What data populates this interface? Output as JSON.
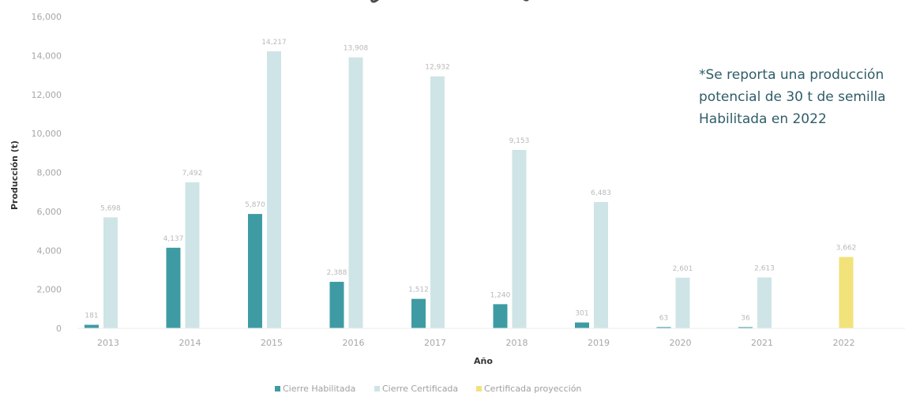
{
  "chart_data": {
    "type": "bar",
    "categories": [
      "2013",
      "2014",
      "2015",
      "2016",
      "2017",
      "2018",
      "2019",
      "2020",
      "2021",
      "2022"
    ],
    "series": [
      {
        "name": "Cierre Habilitada",
        "color": "#3f9ba3",
        "values": [
          181,
          4137,
          5870,
          2388,
          1512,
          1240,
          301,
          63,
          36,
          null
        ],
        "labels": [
          "181",
          "4,137",
          "5,870",
          "2,388",
          "1,512",
          "1,240",
          "301",
          "63",
          "36",
          ""
        ]
      },
      {
        "name": "Cierre Certificada",
        "color": "#cfe4e6",
        "values": [
          5698,
          7492,
          14217,
          13908,
          12932,
          9153,
          6483,
          2601,
          2613,
          null
        ],
        "labels": [
          "5,698",
          "7,492",
          "14,217",
          "13,908",
          "12,932",
          "9,153",
          "6,483",
          "2,601",
          "2,613",
          ""
        ]
      },
      {
        "name": "Certificada proyección",
        "color": "#f2e27a",
        "values": [
          null,
          null,
          null,
          null,
          null,
          null,
          null,
          null,
          null,
          3662
        ],
        "labels": [
          "",
          "",
          "",
          "",
          "",
          "",
          "",
          "",
          "",
          "3,662"
        ]
      }
    ],
    "xlabel": "Año",
    "ylabel": "Producción (t)",
    "ylim": [
      0,
      16000
    ],
    "yticks": [
      "0",
      "2,000",
      "4,000",
      "6,000",
      "8,000",
      "10,000",
      "12,000",
      "14,000",
      "16,000"
    ],
    "ytick_values": [
      0,
      2000,
      4000,
      6000,
      8000,
      10000,
      12000,
      14000,
      16000
    ],
    "grid": false,
    "legend_position": "bottom",
    "annotation": [
      "*Se reporta una producción",
      "potencial de 30 t de semilla",
      "Habilitada en 2022"
    ]
  }
}
